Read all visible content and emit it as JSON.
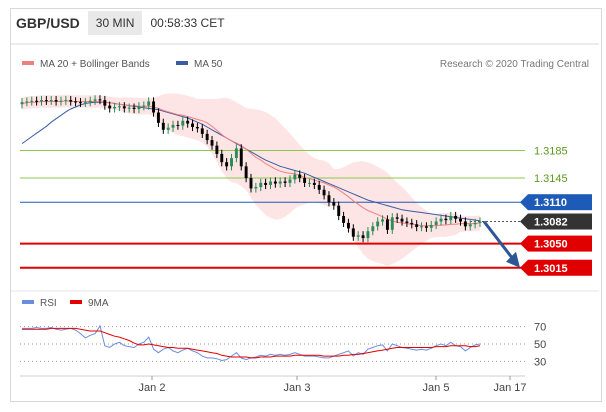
{
  "header": {
    "symbol": "GBP/USD",
    "timeframe": "30 MIN",
    "time": "00:58:33 CET"
  },
  "legend": {
    "ma20_bb_label": "MA 20 + Bollinger Bands",
    "ma50_label": "MA 50",
    "credit": "Research © 2020 Trading Central",
    "rsi_label": "RSI",
    "ma9_label": "9MA"
  },
  "colors": {
    "up_candle": "#2e8b57",
    "down_candle": "#000000",
    "ma20": "#f08080",
    "bollinger_fill": "#fde0e0",
    "ma50": "#3b5ba5",
    "support": "#e00000",
    "resistance_green": "#8cc84b",
    "pivot_blue": "#1e5bb8",
    "arrow": "#2b5797",
    "rsi": "#6a8edc",
    "ma9": "#e00000"
  },
  "chart_data": [
    {
      "type": "candlestick",
      "x_ticks": [
        "Jan 2",
        "Jan 3",
        "Jan 5",
        "Jan 17"
      ],
      "ylim": [
        1.299,
        1.329
      ],
      "levels": [
        {
          "value": 1.3185,
          "label": "1.3185",
          "kind": "resistance",
          "color": "#8cc84b"
        },
        {
          "value": 1.3145,
          "label": "1.3145",
          "kind": "resistance",
          "color": "#8cc84b"
        },
        {
          "value": 1.311,
          "label": "1.3110",
          "kind": "pivot",
          "color": "#1e5bb8"
        },
        {
          "value": 1.305,
          "label": "1.3050",
          "kind": "support",
          "color": "#e00000"
        },
        {
          "value": 1.3015,
          "label": "1.3015",
          "kind": "support",
          "color": "#e00000"
        }
      ],
      "last_price": {
        "value": 1.3082,
        "label": "1.3082"
      },
      "arrow": {
        "from": 1.3082,
        "to": 1.3015,
        "direction": "down"
      },
      "close": [
        1.3255,
        1.3256,
        1.3257,
        1.3256,
        1.3258,
        1.3257,
        1.3258,
        1.3256,
        1.3257,
        1.3258,
        1.3256,
        1.3255,
        1.3254,
        1.3255,
        1.3257,
        1.3259,
        1.3258,
        1.325,
        1.3246,
        1.3248,
        1.3249,
        1.3246,
        1.3247,
        1.3245,
        1.3249,
        1.325,
        1.3256,
        1.324,
        1.3225,
        1.3215,
        1.3218,
        1.3222,
        1.3221,
        1.3228,
        1.3224,
        1.3219,
        1.3217,
        1.3209,
        1.32,
        1.3192,
        1.318,
        1.3168,
        1.3162,
        1.3174,
        1.3188,
        1.3162,
        1.3145,
        1.313,
        1.3132,
        1.3138,
        1.3135,
        1.314,
        1.3137,
        1.314,
        1.3138,
        1.3143,
        1.315,
        1.3145,
        1.3138,
        1.3138,
        1.3135,
        1.3128,
        1.312,
        1.311,
        1.3105,
        1.309,
        1.308,
        1.3072,
        1.306,
        1.3062,
        1.3058,
        1.3068,
        1.3075,
        1.3082,
        1.3085,
        1.307,
        1.3088,
        1.3086,
        1.3082,
        1.308,
        1.3078,
        1.3074,
        1.3075,
        1.3073,
        1.3077,
        1.3082,
        1.3086,
        1.3084,
        1.309,
        1.3086,
        1.3082,
        1.3075,
        1.3078,
        1.308,
        1.3082
      ],
      "ma20": [
        1.3253,
        1.3254,
        1.3255,
        1.3255,
        1.3256,
        1.3256,
        1.3256,
        1.3256,
        1.3256,
        1.3257,
        1.3256,
        1.3256,
        1.3256,
        1.3256,
        1.3256,
        1.3256,
        1.3256,
        1.3255,
        1.3254,
        1.3253,
        1.3252,
        1.3251,
        1.325,
        1.325,
        1.3249,
        1.3249,
        1.3249,
        1.3248,
        1.3246,
        1.3243,
        1.3241,
        1.3239,
        1.3237,
        1.3236,
        1.3234,
        1.3232,
        1.323,
        1.3228,
        1.3225,
        1.322,
        1.3214,
        1.3208,
        1.3203,
        1.3199,
        1.3196,
        1.3192,
        1.3187,
        1.3181,
        1.3175,
        1.3171,
        1.3166,
        1.3162,
        1.3158,
        1.3155,
        1.3153,
        1.3152,
        1.3151,
        1.3149,
        1.3146,
        1.3144,
        1.3142,
        1.314,
        1.3138,
        1.3135,
        1.3132,
        1.3128,
        1.3123,
        1.3118,
        1.3112,
        1.3107,
        1.3102,
        1.3098,
        1.3095,
        1.3092,
        1.3089,
        1.3085,
        1.3083,
        1.3081,
        1.308,
        1.3079,
        1.3078,
        1.3077,
        1.3076,
        1.3076,
        1.3076,
        1.3076,
        1.3077,
        1.3077,
        1.3078,
        1.3078,
        1.3079,
        1.3079,
        1.3079,
        1.3079,
        1.308
      ],
      "ma50": [
        1.3195,
        1.32,
        1.3205,
        1.321,
        1.3215,
        1.322,
        1.3226,
        1.3231,
        1.3236,
        1.3241,
        1.3245,
        1.3248,
        1.3251,
        1.3253,
        1.3254,
        1.3255,
        1.3255,
        1.3255,
        1.3254,
        1.3253,
        1.3252,
        1.3251,
        1.325,
        1.3249,
        1.3248,
        1.3247,
        1.3246,
        1.3245,
        1.3244,
        1.3242,
        1.324,
        1.3238,
        1.3236,
        1.3234,
        1.3232,
        1.3229,
        1.3226,
        1.3223,
        1.3219,
        1.3215,
        1.3211,
        1.3207,
        1.3203,
        1.3199,
        1.3195,
        1.3191,
        1.3187,
        1.3183,
        1.3179,
        1.3175,
        1.3171,
        1.3168,
        1.3165,
        1.3162,
        1.316,
        1.3158,
        1.3156,
        1.3154,
        1.3152,
        1.3149,
        1.3146,
        1.3143,
        1.314,
        1.3137,
        1.3134,
        1.3131,
        1.3128,
        1.3125,
        1.3122,
        1.3119,
        1.3116,
        1.3113,
        1.3111,
        1.3109,
        1.3107,
        1.3105,
        1.3103,
        1.3101,
        1.3099,
        1.3098,
        1.3097,
        1.3096,
        1.3095,
        1.3094,
        1.3093,
        1.3092,
        1.3091,
        1.309,
        1.3089,
        1.3088,
        1.3087,
        1.3086,
        1.3085,
        1.3084,
        1.3083
      ]
    },
    {
      "type": "line",
      "name": "RSI",
      "ylim": [
        20,
        80
      ],
      "y_ticks": [
        70,
        50,
        30
      ],
      "rsi": [
        68,
        68,
        68,
        69,
        68,
        68,
        69,
        67,
        66,
        67,
        68,
        66,
        62,
        57,
        60,
        62,
        71,
        48,
        46,
        50,
        52,
        48,
        47,
        46,
        50,
        52,
        58,
        44,
        40,
        44,
        46,
        42,
        40,
        43,
        45,
        42,
        40,
        36,
        34,
        34,
        33,
        31,
        32,
        36,
        40,
        34,
        32,
        34,
        35,
        37,
        36,
        38,
        37,
        38,
        37,
        38,
        40,
        38,
        36,
        36,
        36,
        35,
        34,
        34,
        36,
        38,
        40,
        42,
        36,
        40,
        38,
        44,
        46,
        48,
        49,
        42,
        50,
        48,
        46,
        45,
        44,
        43,
        44,
        43,
        45,
        48,
        50,
        48,
        52,
        48,
        47,
        42,
        46,
        49,
        50
      ],
      "ma9": [
        67,
        67,
        67,
        67,
        67,
        67,
        68,
        68,
        68,
        68,
        68,
        68,
        67,
        66,
        65,
        65,
        65,
        63,
        61,
        59,
        58,
        56,
        54,
        51,
        49,
        49,
        50,
        49,
        48,
        47,
        46,
        46,
        45,
        45,
        45,
        44,
        43,
        42,
        41,
        40,
        39,
        37,
        36,
        35,
        35,
        35,
        35,
        34,
        34,
        35,
        35,
        35,
        36,
        36,
        36,
        36,
        37,
        37,
        37,
        37,
        37,
        37,
        36,
        36,
        36,
        36,
        37,
        37,
        38,
        38,
        39,
        40,
        41,
        42,
        43,
        44,
        45,
        46,
        46,
        46,
        46,
        46,
        46,
        46,
        46,
        47,
        47,
        47,
        48,
        48,
        48,
        48,
        47,
        47,
        48
      ]
    }
  ]
}
